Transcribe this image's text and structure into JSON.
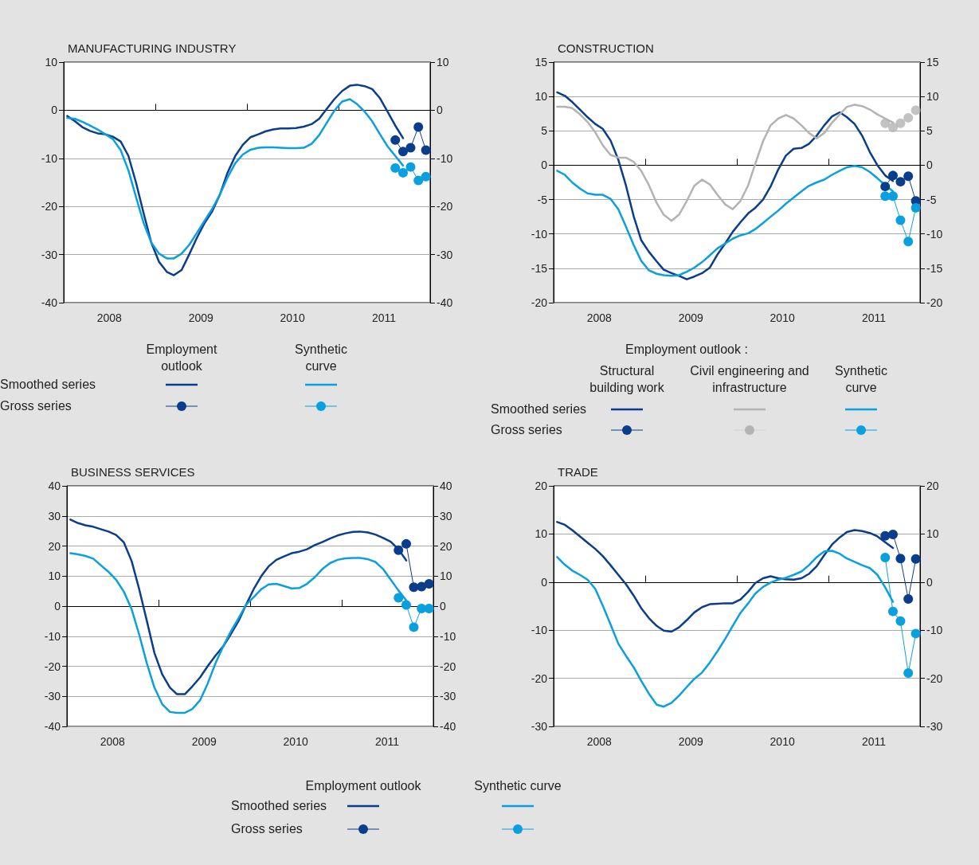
{
  "chart_data": [
    {
      "type": "line",
      "title": "MANUFACTURING INDUSTRY",
      "grid": "y",
      "annotations": [
        "Employment outlook",
        "Synthetic curve",
        "Smoothed series",
        "Gross series"
      ],
      "x": [
        "2008-01-15",
        "2008-02-15",
        "2008-03-15",
        "2008-04-15",
        "2008-05-15",
        "2008-06-15",
        "2008-07-15",
        "2008-08-15",
        "2008-09-15",
        "2008-10-15",
        "2008-11-15",
        "2008-12-15",
        "2009-01-15",
        "2009-02-15",
        "2009-03-15",
        "2009-04-15",
        "2009-05-15",
        "2009-06-15",
        "2009-07-15",
        "2009-08-15",
        "2009-09-15",
        "2009-10-15",
        "2009-11-15",
        "2009-12-15",
        "2010-01-15",
        "2010-02-15",
        "2010-03-15",
        "2010-04-15",
        "2010-05-15",
        "2010-06-15",
        "2010-07-15",
        "2010-08-15",
        "2010-09-15",
        "2010-10-15",
        "2010-11-15",
        "2010-12-15",
        "2011-01-15",
        "2011-02-15",
        "2011-03-15",
        "2011-04-15",
        "2011-05-15",
        "2011-06-15",
        "2011-07-15",
        "2011-08-15",
        "2011-09-15"
      ],
      "xlim": [
        "2008-01-01",
        "2012-01-01"
      ],
      "xticks": [
        {
          "value": "2008-07-01",
          "label": "2008"
        },
        {
          "value": "2009-01-01",
          "label": null
        },
        {
          "value": "2009-07-01",
          "label": "2009"
        },
        {
          "value": "2010-01-01",
          "label": null
        },
        {
          "value": "2010-07-01",
          "label": "2010"
        },
        {
          "value": "2011-01-01",
          "label": null
        },
        {
          "value": "2011-07-01",
          "label": "2011"
        }
      ],
      "ylim": [
        -40,
        10
      ],
      "yticks": [
        -40,
        -30,
        -20,
        -10,
        0,
        10
      ],
      "y2lim": [
        -40,
        10
      ],
      "y2ticks": [
        -40,
        -30,
        -20,
        -10,
        0,
        10
      ],
      "series": [
        {
          "color": "#0a3d8c",
          "marker": "none",
          "line_style": "solid",
          "values": [
            -1.2,
            -2.3,
            -3.5,
            -4.3,
            -4.8,
            -5.0,
            -5.5,
            -6.5,
            -9.5,
            -15,
            -21.5,
            -27.5,
            -31.5,
            -33.6,
            -34.3,
            -33.2,
            -30,
            -26.5,
            -23.5,
            -21,
            -17.5,
            -13,
            -9.5,
            -7.2,
            -5.6,
            -5.0,
            -4.4,
            -4.0,
            -3.8,
            -3.8,
            -3.7,
            -3.4,
            -2.9,
            -1.8,
            0.3,
            2.3,
            4.0,
            5.1,
            5.3,
            5.0,
            4.4,
            2.5,
            -0.3,
            -3.2,
            -5.8
          ]
        },
        {
          "color": "#0aa0e0",
          "marker": "none",
          "line_style": "solid",
          "values": [
            -1.6,
            -1.8,
            -2.4,
            -3.2,
            -4.0,
            -5.0,
            -6.0,
            -8.3,
            -12.5,
            -18,
            -23.5,
            -27.5,
            -29.8,
            -30.8,
            -30.8,
            -29.8,
            -28,
            -25.5,
            -23,
            -20.5,
            -17.5,
            -14,
            -11,
            -9.2,
            -8.2,
            -7.8,
            -7.7,
            -7.7,
            -7.8,
            -7.9,
            -7.9,
            -7.8,
            -7.0,
            -5.2,
            -2.6,
            -0.1,
            1.8,
            2.3,
            1.3,
            -0.3,
            -2.3,
            -5.0,
            -7.5,
            -9.5,
            -11.5
          ]
        },
        {
          "color": "#0a3d8c",
          "marker": "circle",
          "line_style": "solid",
          "x": [
            "2011-08-15",
            "2011-09-15",
            "2011-10-15",
            "2011-11-15",
            "2011-12-15"
          ],
          "values": [
            -6.2,
            -8.6,
            -7.8,
            -3.5,
            -8.3
          ]
        },
        {
          "color": "#0aa0e0",
          "marker": "circle",
          "line_style": "solid",
          "x": [
            "2011-08-15",
            "2011-09-15",
            "2011-10-15",
            "2011-11-15",
            "2011-12-15"
          ],
          "values": [
            -12.0,
            -13.0,
            -11.8,
            -14.6,
            -13.8
          ]
        }
      ]
    },
    {
      "type": "line",
      "title": "CONSTRUCTION",
      "grid": "y",
      "annotations": [
        "Employment outlook :",
        "Structural building work",
        "Civil engineering and infrastructure",
        "Synthetic curve",
        "Smoothed series",
        "Gross series"
      ],
      "x": [
        "2008-01-15",
        "2008-02-15",
        "2008-03-15",
        "2008-04-15",
        "2008-05-15",
        "2008-06-15",
        "2008-07-15",
        "2008-08-15",
        "2008-09-15",
        "2008-10-15",
        "2008-11-15",
        "2008-12-15",
        "2009-01-15",
        "2009-02-15",
        "2009-03-15",
        "2009-04-15",
        "2009-05-15",
        "2009-06-15",
        "2009-07-15",
        "2009-08-15",
        "2009-09-15",
        "2009-10-15",
        "2009-11-15",
        "2009-12-15",
        "2010-01-15",
        "2010-02-15",
        "2010-03-15",
        "2010-04-15",
        "2010-05-15",
        "2010-06-15",
        "2010-07-15",
        "2010-08-15",
        "2010-09-15",
        "2010-10-15",
        "2010-11-15",
        "2010-12-15",
        "2011-01-15",
        "2011-02-15",
        "2011-03-15",
        "2011-04-15",
        "2011-05-15",
        "2011-06-15",
        "2011-07-15",
        "2011-08-15",
        "2011-09-15"
      ],
      "xlim": [
        "2008-01-01",
        "2012-01-01"
      ],
      "xticks": [
        {
          "value": "2008-07-01",
          "label": "2008"
        },
        {
          "value": "2009-01-01",
          "label": null
        },
        {
          "value": "2009-07-01",
          "label": "2009"
        },
        {
          "value": "2010-01-01",
          "label": null
        },
        {
          "value": "2010-07-01",
          "label": "2010"
        },
        {
          "value": "2011-01-01",
          "label": null
        },
        {
          "value": "2011-07-01",
          "label": "2011"
        }
      ],
      "ylim": [
        -20,
        15
      ],
      "yticks": [
        -20,
        -15,
        -10,
        -5,
        0,
        5,
        10,
        15
      ],
      "y2lim": [
        -20,
        15
      ],
      "y2ticks": [
        -20,
        -15,
        -10,
        -5,
        0,
        5,
        10,
        15
      ],
      "series": [
        {
          "color": "#0a3d8c",
          "marker": "none",
          "line_style": "solid",
          "values": [
            10.6,
            10.1,
            9.2,
            8.1,
            7.0,
            6.0,
            5.3,
            3.6,
            0.8,
            -2.9,
            -7.4,
            -10.9,
            -12.6,
            -14.0,
            -15.2,
            -15.7,
            -16.1,
            -16.6,
            -16.2,
            -15.7,
            -14.9,
            -13.0,
            -11.4,
            -9.7,
            -8.3,
            -7.0,
            -6.2,
            -5.0,
            -3.1,
            -0.6,
            1.4,
            2.4,
            2.5,
            3.1,
            4.3,
            5.8,
            7.1,
            7.7,
            7.0,
            6.0,
            4.3,
            1.9,
            0,
            -1.5,
            -2.3
          ]
        },
        {
          "color": "#b3b3b3",
          "marker": "none",
          "line_style": "solid",
          "values": [
            8.5,
            8.5,
            8.3,
            7.4,
            6.3,
            4.8,
            2.9,
            1.5,
            1.1,
            1.1,
            0.5,
            -0.8,
            -2.9,
            -5.5,
            -7.2,
            -8.1,
            -7.2,
            -5.2,
            -3.0,
            -2.1,
            -2.8,
            -4.3,
            -5.7,
            -6.4,
            -5.2,
            -2.9,
            0.2,
            3.5,
            5.8,
            6.8,
            7.3,
            6.8,
            5.8,
            4.7,
            3.9,
            4.7,
            6.2,
            7.4,
            8.5,
            8.8,
            8.6,
            8.1,
            7.4,
            6.8,
            6.2
          ]
        },
        {
          "color": "#0aa0e0",
          "marker": "none",
          "line_style": "solid",
          "values": [
            -0.8,
            -1.4,
            -2.5,
            -3.4,
            -4.1,
            -4.3,
            -4.3,
            -4.9,
            -6.4,
            -8.9,
            -11.6,
            -13.9,
            -15.3,
            -15.8,
            -16.0,
            -16.1,
            -16.0,
            -15.5,
            -14.9,
            -14.1,
            -13.1,
            -12.1,
            -11.4,
            -10.7,
            -10.2,
            -9.9,
            -9.3,
            -8.4,
            -7.5,
            -6.6,
            -5.6,
            -4.7,
            -3.8,
            -3.0,
            -2.5,
            -2.1,
            -1.4,
            -0.8,
            -0.3,
            -0.1,
            -0.3,
            -1.0,
            -1.9,
            -2.9,
            -3.8
          ]
        },
        {
          "color": "#0a3d8c",
          "marker": "circle",
          "line_style": "solid",
          "x": [
            "2011-08-15",
            "2011-09-15",
            "2011-10-15",
            "2011-11-15",
            "2011-12-15"
          ],
          "values": [
            -3.1,
            -1.5,
            -2.4,
            -1.6,
            -5.2
          ]
        },
        {
          "type": "scatter",
          "color": "#b3b3b3",
          "marker": "circle",
          "x": [
            "2011-08-15",
            "2011-09-15",
            "2011-10-15",
            "2011-11-15",
            "2011-12-15"
          ],
          "values": [
            6.1,
            5.5,
            6.1,
            6.9,
            8.0
          ]
        },
        {
          "color": "#0aa0e0",
          "marker": "circle",
          "line_style": "solid",
          "x": [
            "2011-08-15",
            "2011-09-15",
            "2011-10-15",
            "2011-11-15",
            "2011-12-15"
          ],
          "values": [
            -4.5,
            -4.5,
            -8.0,
            -11.1,
            -6.2
          ]
        }
      ]
    },
    {
      "type": "line",
      "title": "BUSINESS SERVICES",
      "grid": "y",
      "annotations": [
        "Employment outlook",
        "Synthetic curve",
        "Smoothed series",
        "Gross series"
      ],
      "x": [
        "2008-01-15",
        "2008-02-15",
        "2008-03-15",
        "2008-04-15",
        "2008-05-15",
        "2008-06-15",
        "2008-07-15",
        "2008-08-15",
        "2008-09-15",
        "2008-10-15",
        "2008-11-15",
        "2008-12-15",
        "2009-01-15",
        "2009-02-15",
        "2009-03-15",
        "2009-04-15",
        "2009-05-15",
        "2009-06-15",
        "2009-07-15",
        "2009-08-15",
        "2009-09-15",
        "2009-10-15",
        "2009-11-15",
        "2009-12-15",
        "2010-01-15",
        "2010-02-15",
        "2010-03-15",
        "2010-04-15",
        "2010-05-15",
        "2010-06-15",
        "2010-07-15",
        "2010-08-15",
        "2010-09-15",
        "2010-10-15",
        "2010-11-15",
        "2010-12-15",
        "2011-01-15",
        "2011-02-15",
        "2011-03-15",
        "2011-04-15",
        "2011-05-15",
        "2011-06-15",
        "2011-07-15",
        "2011-08-15",
        "2011-09-15"
      ],
      "xlim": [
        "2008-01-01",
        "2012-01-01"
      ],
      "xticks": [
        {
          "value": "2008-07-01",
          "label": "2008"
        },
        {
          "value": "2009-01-01",
          "label": null
        },
        {
          "value": "2009-07-01",
          "label": "2009"
        },
        {
          "value": "2010-01-01",
          "label": null
        },
        {
          "value": "2010-07-01",
          "label": "2010"
        },
        {
          "value": "2011-01-01",
          "label": null
        },
        {
          "value": "2011-07-01",
          "label": "2011"
        }
      ],
      "ylim": [
        -40,
        40
      ],
      "yticks": [
        -40,
        -30,
        -20,
        -10,
        0,
        10,
        20,
        30,
        40
      ],
      "y2lim": [
        -40,
        40
      ],
      "y2ticks": [
        -40,
        -30,
        -20,
        -10,
        0,
        10,
        20,
        30,
        40
      ],
      "series": [
        {
          "color": "#0a3d8c",
          "marker": "none",
          "line_style": "solid",
          "values": [
            28.8,
            27.6,
            26.9,
            26.4,
            25.6,
            24.8,
            23.7,
            21.2,
            15.0,
            5.7,
            -5.0,
            -15.6,
            -22.7,
            -27.1,
            -29.3,
            -29.3,
            -26.7,
            -23.7,
            -20.0,
            -16.5,
            -13.4,
            -9.4,
            -5.0,
            0.4,
            5.7,
            10.1,
            13.2,
            15.4,
            16.5,
            17.6,
            18.1,
            18.9,
            20.3,
            21.3,
            22.5,
            23.5,
            24.2,
            24.7,
            24.8,
            24.5,
            23.8,
            22.7,
            21.4,
            18.9,
            15.2
          ]
        },
        {
          "color": "#0aa0e0",
          "marker": "none",
          "line_style": "solid",
          "values": [
            17.6,
            17.2,
            16.7,
            15.8,
            13.6,
            11.4,
            8.8,
            4.8,
            -1.0,
            -9.4,
            -19.1,
            -27.1,
            -32.6,
            -35.2,
            -35.5,
            -35.5,
            -34.2,
            -31.3,
            -25.8,
            -19.1,
            -13.4,
            -8.5,
            -4.1,
            0.4,
            3.0,
            5.7,
            7.2,
            7.4,
            6.7,
            5.9,
            6.0,
            7.4,
            9.6,
            12.3,
            14.3,
            15.4,
            15.9,
            16.0,
            16.0,
            15.6,
            14.7,
            12.3,
            8.8,
            5.2,
            1.9
          ]
        },
        {
          "color": "#0a3d8c",
          "marker": "circle",
          "line_style": "solid",
          "x": [
            "2011-08-15",
            "2011-09-15",
            "2011-10-15",
            "2011-11-15",
            "2011-12-15"
          ],
          "values": [
            18.6,
            20.7,
            6.3,
            6.5,
            7.4
          ]
        },
        {
          "color": "#0aa0e0",
          "marker": "circle",
          "line_style": "solid",
          "x": [
            "2011-08-15",
            "2011-09-15",
            "2011-10-15",
            "2011-11-15",
            "2011-12-15"
          ],
          "values": [
            2.8,
            0.4,
            -7.0,
            -0.8,
            -0.8
          ]
        }
      ]
    },
    {
      "type": "line",
      "title": "TRADE",
      "grid": "y",
      "x": [
        "2008-01-15",
        "2008-02-15",
        "2008-03-15",
        "2008-04-15",
        "2008-05-15",
        "2008-06-15",
        "2008-07-15",
        "2008-08-15",
        "2008-09-15",
        "2008-10-15",
        "2008-11-15",
        "2008-12-15",
        "2009-01-15",
        "2009-02-15",
        "2009-03-15",
        "2009-04-15",
        "2009-05-15",
        "2009-06-15",
        "2009-07-15",
        "2009-08-15",
        "2009-09-15",
        "2009-10-15",
        "2009-11-15",
        "2009-12-15",
        "2010-01-15",
        "2010-02-15",
        "2010-03-15",
        "2010-04-15",
        "2010-05-15",
        "2010-06-15",
        "2010-07-15",
        "2010-08-15",
        "2010-09-15",
        "2010-10-15",
        "2010-11-15",
        "2010-12-15",
        "2011-01-15",
        "2011-02-15",
        "2011-03-15",
        "2011-04-15",
        "2011-05-15",
        "2011-06-15",
        "2011-07-15",
        "2011-08-15",
        "2011-09-15"
      ],
      "xlim": [
        "2008-01-01",
        "2012-01-01"
      ],
      "xticks": [
        {
          "value": "2008-07-01",
          "label": "2008"
        },
        {
          "value": "2009-01-01",
          "label": null
        },
        {
          "value": "2009-07-01",
          "label": "2009"
        },
        {
          "value": "2010-01-01",
          "label": null
        },
        {
          "value": "2010-07-01",
          "label": "2010"
        },
        {
          "value": "2011-01-01",
          "label": null
        },
        {
          "value": "2011-07-01",
          "label": "2011"
        }
      ],
      "ylim": [
        -30,
        20
      ],
      "yticks": [
        -30,
        -20,
        -10,
        0,
        10,
        20
      ],
      "y2lim": [
        -30,
        20
      ],
      "y2ticks": [
        -30,
        -20,
        -10,
        0,
        10,
        20
      ],
      "series": [
        {
          "color": "#0a3d8c",
          "marker": "none",
          "line_style": "solid",
          "values": [
            12.5,
            11.9,
            10.8,
            9.5,
            8.2,
            6.9,
            5.4,
            3.5,
            1.5,
            -0.4,
            -2.8,
            -5.4,
            -7.5,
            -9.1,
            -10.1,
            -10.3,
            -9.4,
            -7.9,
            -6.3,
            -5.2,
            -4.6,
            -4.5,
            -4.4,
            -4.4,
            -3.6,
            -2.0,
            -0.2,
            0.8,
            1.2,
            0.8,
            0.6,
            0.5,
            0.8,
            1.7,
            3.3,
            5.6,
            7.8,
            9.3,
            10.4,
            10.8,
            10.6,
            10.2,
            9.5,
            8.3,
            7.1
          ]
        },
        {
          "color": "#0aa0e0",
          "marker": "none",
          "line_style": "solid",
          "values": [
            5.2,
            3.6,
            2.4,
            1.5,
            0.5,
            -1.4,
            -4.9,
            -8.8,
            -12.8,
            -15.3,
            -17.7,
            -20.5,
            -23.2,
            -25.5,
            -25.9,
            -25.1,
            -23.6,
            -21.8,
            -20.1,
            -18.8,
            -16.7,
            -14.4,
            -11.8,
            -9.1,
            -6.4,
            -4.4,
            -2.4,
            -1.0,
            -0.1,
            0.5,
            0.9,
            1.5,
            2.2,
            3.5,
            5.2,
            6.4,
            6.5,
            5.9,
            4.9,
            4.2,
            3.5,
            2.9,
            1.5,
            -1.1,
            -4.1
          ]
        },
        {
          "color": "#0a3d8c",
          "marker": "circle",
          "line_style": "solid",
          "x": [
            "2011-08-15",
            "2011-09-15",
            "2011-10-15",
            "2011-11-15",
            "2011-12-15"
          ],
          "values": [
            9.6,
            9.9,
            4.9,
            -3.5,
            4.8
          ]
        },
        {
          "color": "#0aa0e0",
          "marker": "circle",
          "line_style": "solid",
          "x": [
            "2011-08-15",
            "2011-09-15",
            "2011-10-15",
            "2011-11-15",
            "2011-12-15"
          ],
          "values": [
            5.1,
            -6.1,
            -8.1,
            -18.9,
            -10.7
          ]
        }
      ]
    }
  ]
}
